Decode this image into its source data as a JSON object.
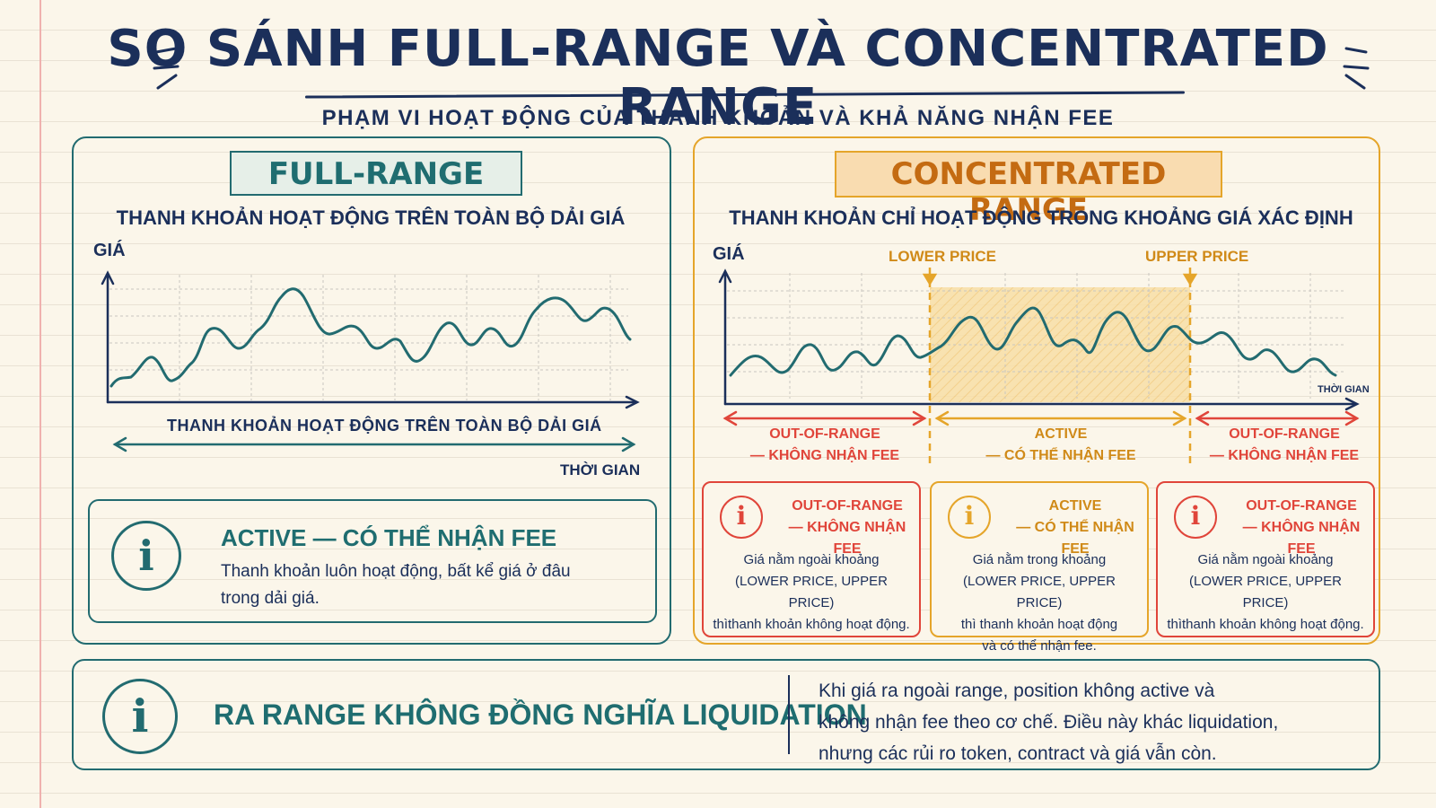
{
  "title": "SO SÁNH FULL-RANGE VÀ CONCENTRATED RANGE",
  "subtitle": "PHẠM VI HOẠT ĐỘNG CỦA THANH KHOẢN VÀ KHẢ NĂNG NHẬN FEE",
  "colors": {
    "teal": "#226b70",
    "amber": "#e5a52a",
    "red": "#e0453a",
    "navy": "#1b2f5a",
    "paper": "#fbf6ea"
  },
  "left_panel": {
    "title": "FULL-RANGE",
    "subtitle": "THANH KHOẢN HOẠT ĐỘNG TRÊN TOÀN BỘ DẢI GIÁ",
    "y_label": "GIÁ",
    "x_label": "THỜI GIAN",
    "span_label": "THANH KHOẢN HOẠT ĐỘNG TRÊN TOÀN BỘ DẢI GIÁ",
    "info_icon": "info-icon",
    "info_title": "ACTIVE — CÓ THỂ NHẬN FEE",
    "info_text": "Thanh khoản luôn hoạt động, bất kể giá ở đâu trong dải giá."
  },
  "right_panel": {
    "title": "CONCENTRATED RANGE",
    "subtitle": "THANH KHOẢN CHỈ HOẠT ĐỘNG TRONG KHOẢNG GIÁ XÁC ĐỊNH",
    "y_label": "GIÁ",
    "x_label": "THỜI GIAN",
    "lower_price": "LOWER PRICE",
    "upper_price": "UPPER PRICE",
    "ranges": [
      {
        "line1": "OUT-OF-RANGE",
        "line2": "— KHÔNG NHẬN FEE"
      },
      {
        "line1": "ACTIVE",
        "line2": "— CÓ THỂ NHẬN FEE"
      },
      {
        "line1": "OUT-OF-RANGE",
        "line2": "— KHÔNG NHẬN FEE"
      }
    ],
    "cards": [
      {
        "title1": "OUT-OF-RANGE",
        "title2": "— KHÔNG NHẬN FEE",
        "body1": "Giá nằm ngoài khoảng",
        "body2": "(LOWER PRICE, UPPER PRICE)",
        "body3": "thìthanh khoản không hoạt động.",
        "body4": ""
      },
      {
        "title1": "ACTIVE",
        "title2": "— CÓ THỂ NHẬN FEE",
        "body1": "Giá nằm trong khoảng",
        "body2": "(LOWER PRICE, UPPER PRICE)",
        "body3": "thì thanh khoản hoạt động",
        "body4": "và có thể nhận fee."
      },
      {
        "title1": "OUT-OF-RANGE",
        "title2": "— KHÔNG NHẬN FEE",
        "body1": "Giá nằm ngoài khoảng",
        "body2": "(LOWER PRICE, UPPER PRICE)",
        "body3": "thìthanh khoản không hoạt động.",
        "body4": ""
      }
    ]
  },
  "bottom": {
    "title": "RA RANGE KHÔNG ĐỒNG NGHĨA LIQUIDATION",
    "line1": "Khi giá ra ngoài range, position không active và",
    "line2": "không nhận fee theo cơ chế. Điều này khác liquidation,",
    "line3": "nhưng các rủi ro token, contract và giá vẫn còn."
  }
}
